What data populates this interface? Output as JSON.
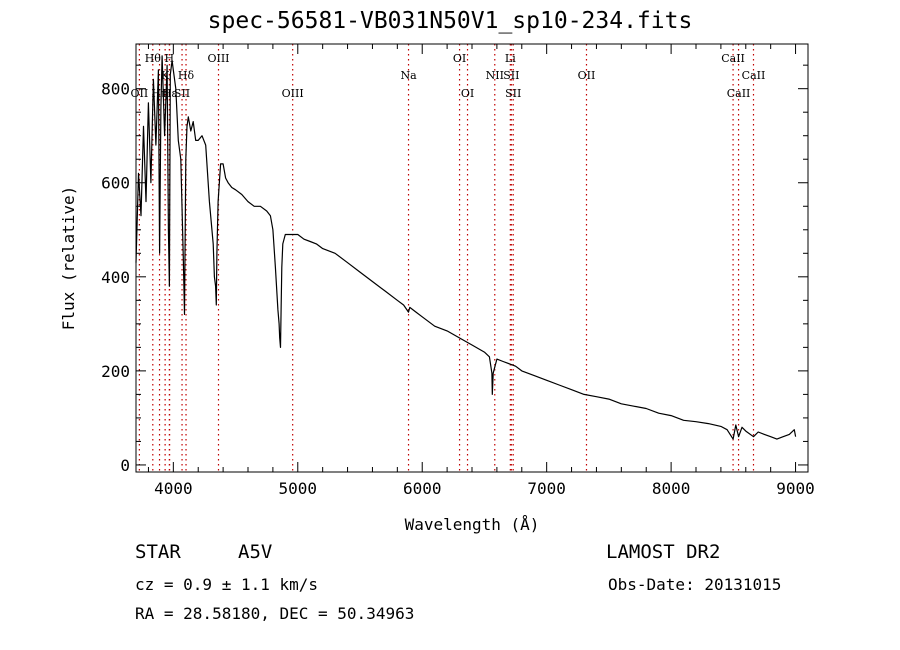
{
  "title": "spec-56581-VB031N50V1_sp10-234.fits",
  "info": {
    "obj_class": "STAR",
    "subclass": "A5V",
    "survey": "LAMOST DR2",
    "cz": "cz = 0.9 ± 1.1 km/s",
    "obs_date": "Obs-Date: 20131015",
    "radec": "RA =  28.58180, DEC =  50.34963"
  },
  "chart_data": {
    "type": "line",
    "xlabel": "Wavelength (Å)",
    "ylabel": "Flux (relative)",
    "xlim": [
      3700,
      9100
    ],
    "ylim": [
      -15,
      895
    ],
    "xticks": [
      4000,
      5000,
      6000,
      7000,
      8000,
      9000
    ],
    "yticks": [
      0,
      200,
      400,
      600,
      800
    ],
    "line_color": "#000000",
    "marker_color": "#c00000",
    "series": [
      {
        "x": [
          3700,
          3720,
          3740,
          3760,
          3780,
          3800,
          3820,
          3840,
          3860,
          3880,
          3890,
          3900,
          3910,
          3930,
          3950,
          3960,
          3968,
          3976,
          3990,
          4000,
          4020,
          4040,
          4060,
          4080,
          4090,
          4100,
          4110,
          4120,
          4140,
          4160,
          4180,
          4200,
          4230,
          4260,
          4290,
          4320,
          4330,
          4340,
          4345,
          4350,
          4360,
          4380,
          4400,
          4420,
          4440,
          4470,
          4500,
          4550,
          4600,
          4650,
          4700,
          4750,
          4780,
          4800,
          4820,
          4840,
          4850,
          4855,
          4861,
          4866,
          4872,
          4880,
          4900,
          4950,
          5000,
          5050,
          5100,
          5150,
          5200,
          5300,
          5400,
          5500,
          5600,
          5700,
          5800,
          5850,
          5890,
          5900,
          5950,
          6000,
          6100,
          6200,
          6300,
          6400,
          6500,
          6540,
          6560,
          6563,
          6570,
          6585,
          6600,
          6650,
          6700,
          6750,
          6800,
          6900,
          7000,
          7100,
          7200,
          7300,
          7400,
          7500,
          7600,
          7700,
          7800,
          7900,
          8000,
          8100,
          8200,
          8300,
          8400,
          8450,
          8498,
          8520,
          8542,
          8570,
          8600,
          8662,
          8700,
          8750,
          8800,
          8850,
          8900,
          8950,
          8990,
          9000
        ],
        "y": [
          430,
          620,
          530,
          720,
          560,
          770,
          600,
          820,
          680,
          840,
          450,
          760,
          870,
          700,
          850,
          500,
          380,
          830,
          860,
          840,
          800,
          690,
          650,
          440,
          320,
          650,
          720,
          740,
          710,
          730,
          690,
          690,
          700,
          680,
          560,
          470,
          400,
          380,
          340,
          450,
          560,
          640,
          640,
          610,
          600,
          590,
          585,
          575,
          560,
          550,
          550,
          540,
          530,
          500,
          420,
          330,
          300,
          270,
          250,
          330,
          420,
          470,
          490,
          490,
          490,
          480,
          475,
          470,
          460,
          450,
          430,
          410,
          390,
          370,
          350,
          340,
          325,
          335,
          325,
          315,
          295,
          285,
          270,
          255,
          240,
          230,
          195,
          150,
          195,
          210,
          225,
          220,
          215,
          210,
          200,
          190,
          180,
          170,
          160,
          150,
          145,
          140,
          130,
          125,
          120,
          110,
          105,
          95,
          92,
          88,
          82,
          75,
          55,
          85,
          60,
          80,
          72,
          60,
          70,
          65,
          60,
          55,
          60,
          65,
          75,
          60
        ]
      }
    ],
    "lines": [
      {
        "x": 3727,
        "label": "OII",
        "row": 3
      },
      {
        "x": 3835,
        "label": "Hθ",
        "row": 1
      },
      {
        "x": 3889,
        "label": "Hη",
        "row": 3
      },
      {
        "x": 3934,
        "label": "K",
        "row": 2
      },
      {
        "x": 3968,
        "label": "H",
        "row": 1
      },
      {
        "x": 3970,
        "label": "Hε",
        "row": 3
      },
      {
        "x": 4070,
        "label": "SII",
        "row": 3
      },
      {
        "x": 4102,
        "label": "Hδ",
        "row": 2
      },
      {
        "x": 4363,
        "label": "OIII",
        "row": 1
      },
      {
        "x": 4959,
        "label": "OIII",
        "row": 3
      },
      {
        "x": 5890,
        "label": "Na",
        "row": 2
      },
      {
        "x": 6300,
        "label": "OI",
        "row": 1
      },
      {
        "x": 6364,
        "label": "OI",
        "row": 3
      },
      {
        "x": 6583,
        "label": "NII",
        "row": 2
      },
      {
        "x": 6708,
        "label": "Li",
        "row": 1
      },
      {
        "x": 6716,
        "label": "SII",
        "row": 2
      },
      {
        "x": 6731,
        "label": "SII",
        "row": 3
      },
      {
        "x": 7320,
        "label": "OII",
        "row": 2
      },
      {
        "x": 8498,
        "label": "CaII",
        "row": 1
      },
      {
        "x": 8542,
        "label": "CaII",
        "row": 3
      },
      {
        "x": 8662,
        "label": "CaII",
        "row": 2
      }
    ]
  }
}
